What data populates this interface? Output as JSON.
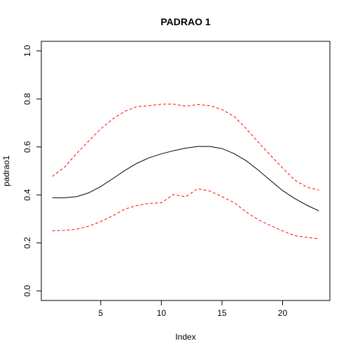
{
  "chart_data": {
    "type": "line",
    "title": "PADRAO 1",
    "xlabel": "Index",
    "ylabel": "padrao1",
    "xlim": [
      0.1,
      23.9
    ],
    "ylim": [
      -0.04,
      1.04
    ],
    "x_ticks": [
      5,
      10,
      15,
      20
    ],
    "y_ticks": [
      0.0,
      0.2,
      0.4,
      0.6,
      0.8,
      1.0
    ],
    "x_tick_labels": [
      "5",
      "10",
      "15",
      "20"
    ],
    "y_tick_labels": [
      "0.0",
      "0.2",
      "0.4",
      "0.6",
      "0.8",
      "1.0"
    ],
    "grid": false,
    "x": [
      1,
      2,
      3,
      4,
      5,
      6,
      7,
      8,
      9,
      10,
      11,
      12,
      13,
      14,
      15,
      16,
      17,
      18,
      19,
      20,
      21,
      22,
      23
    ],
    "series": [
      {
        "role": "main",
        "color": "#000000",
        "style": "solid",
        "values": [
          0.388,
          0.388,
          0.393,
          0.408,
          0.435,
          0.468,
          0.502,
          0.532,
          0.555,
          0.571,
          0.584,
          0.595,
          0.602,
          0.602,
          0.593,
          0.572,
          0.542,
          0.503,
          0.46,
          0.418,
          0.385,
          0.357,
          0.333
        ]
      },
      {
        "role": "upper",
        "color": "#ff0000",
        "style": "dashed",
        "values": [
          0.477,
          0.515,
          0.572,
          0.624,
          0.675,
          0.717,
          0.749,
          0.768,
          0.772,
          0.778,
          0.778,
          0.77,
          0.776,
          0.772,
          0.756,
          0.727,
          0.676,
          0.619,
          0.565,
          0.512,
          0.462,
          0.432,
          0.42
        ]
      },
      {
        "role": "lower",
        "color": "#ff0000",
        "style": "dashed",
        "values": [
          0.25,
          0.252,
          0.257,
          0.269,
          0.289,
          0.313,
          0.341,
          0.356,
          0.365,
          0.367,
          0.402,
          0.392,
          0.426,
          0.416,
          0.393,
          0.368,
          0.328,
          0.296,
          0.272,
          0.25,
          0.23,
          0.223,
          0.217
        ]
      }
    ]
  }
}
